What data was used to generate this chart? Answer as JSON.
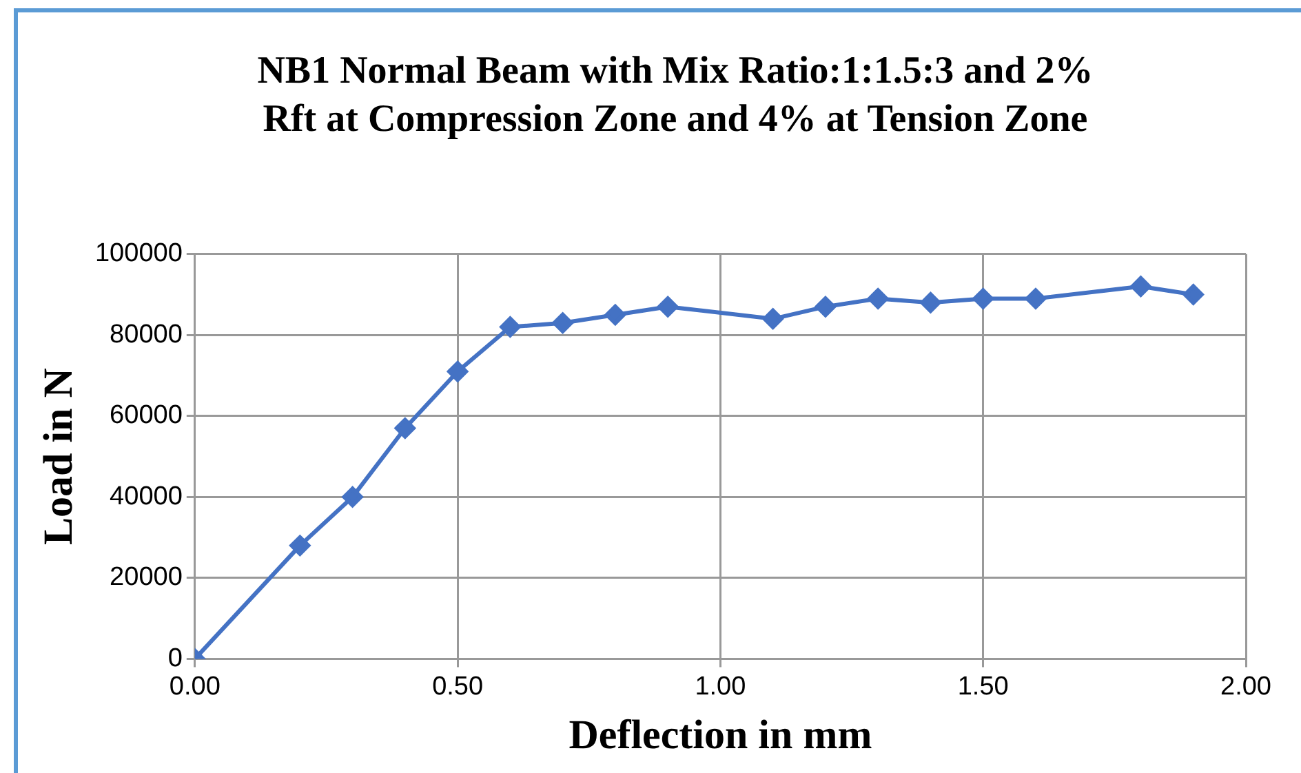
{
  "chart_data": {
    "type": "line",
    "title": "NB1    Normal Beam with Mix Ratio:1:1.5:3 and 2% Rft at Compression Zone and 4% at Tension Zone",
    "xlabel": "Deflection in mm",
    "ylabel": "Load in N",
    "x": [
      0,
      0.2,
      0.3,
      0.4,
      0.5,
      0.6,
      0.7,
      0.8,
      0.9,
      1.1,
      1.2,
      1.3,
      1.4,
      1.5,
      1.6,
      1.8,
      1.9
    ],
    "series": [
      {
        "color": "#4472c4",
        "values": [
          0,
          28000,
          40000,
          57000,
          71000,
          82000,
          83000,
          85000,
          87000,
          84000,
          87000,
          89000,
          88000,
          89000,
          89000,
          92000,
          90000
        ]
      }
    ],
    "xlim": [
      0,
      2
    ],
    "xticks": [
      {
        "value": 0,
        "label": "0.00"
      },
      {
        "value": 0.5,
        "label": "0.50"
      },
      {
        "value": 1,
        "label": "1.00"
      },
      {
        "value": 1.5,
        "label": "1.50"
      },
      {
        "value": 2,
        "label": "2.00"
      }
    ],
    "ylim": [
      0,
      100000
    ],
    "yticks": [
      0,
      20000,
      40000,
      60000,
      80000,
      100000
    ],
    "grid": true,
    "legend": false,
    "marker": "diamond",
    "line_style": "solid"
  }
}
